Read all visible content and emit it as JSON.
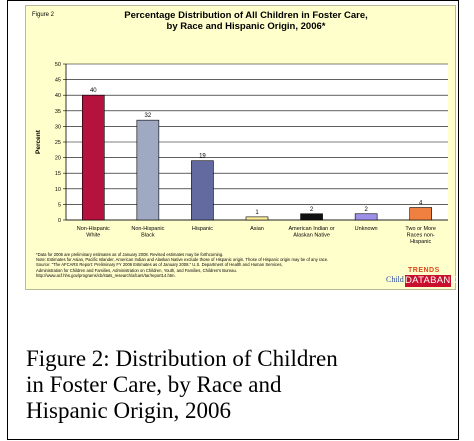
{
  "slide": {
    "figure_label": "Figure 2",
    "notes": [
      "*Data for 2006 are preliminary estimates as of January 2008. Revised estimates may be forthcoming.",
      "Note: Estimates for Asian, Pacific Islander, American Indian and Alaskan Native exclude those of Hispanic origin. Those of Hispanic origin may be of any race.",
      "Source: \"The AFCARS Report: Preliminary FY 2006 Estimates as of January 2008.\" U.S. Department of Health and Human Services,",
      "Administration for Children and Families, Administration on Children, Youth, and Families, Children's Bureau.",
      "http://www.acf.hhs.gov/programs/cb/stats_research/afcars/tar/report14.htm."
    ],
    "logo": {
      "child": "Child",
      "trends": "TRENDS",
      "databank": "DATABANK"
    }
  },
  "chart_data": {
    "type": "bar",
    "title": "Percentage Distribution of All Children in Foster Care, by Race and Hispanic Origin, 2006*",
    "title_lines": [
      "Percentage Distribution of All Children in Foster Care,",
      "by Race and Hispanic Origin, 2006*"
    ],
    "ylabel": "Percent",
    "xlabel": "",
    "ylim": [
      0,
      50
    ],
    "yticks": [
      0,
      5,
      10,
      15,
      20,
      25,
      30,
      35,
      40,
      45,
      50
    ],
    "grid": true,
    "categories": [
      [
        "Non-Hispanic",
        "White"
      ],
      [
        "Non-Hispanic",
        "Black"
      ],
      [
        "Hispanic"
      ],
      [
        "Asian"
      ],
      [
        "American Indian or",
        "Alaskan Native"
      ],
      [
        "Unknown"
      ],
      [
        "Two or More",
        "Races non-",
        "Hispanic"
      ]
    ],
    "values": [
      40,
      32,
      19,
      1,
      2,
      2,
      4
    ],
    "colors": [
      "#b5123e",
      "#9fa9c2",
      "#636aa0",
      "#ffee99",
      "#111111",
      "#9e8fe8",
      "#f08040"
    ]
  },
  "caption": {
    "lines": [
      "Figure 2: Distribution of Children",
      "in Foster Care, by Race and",
      "Hispanic Origin, 2006"
    ]
  }
}
